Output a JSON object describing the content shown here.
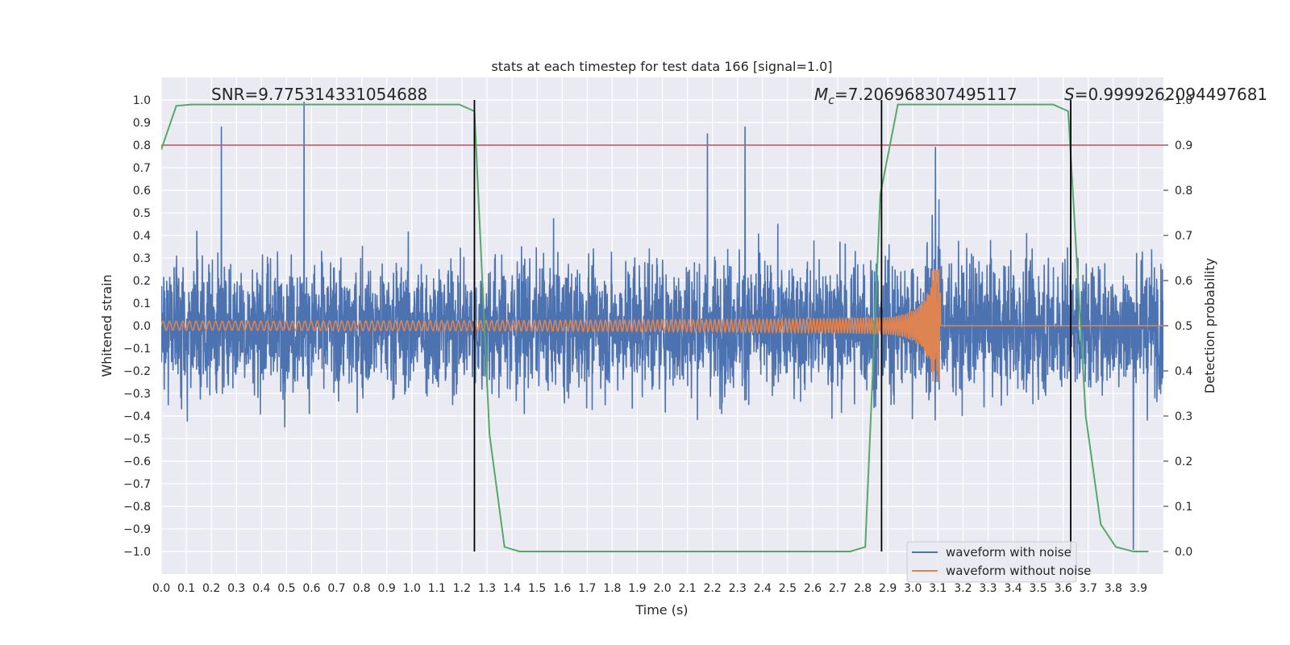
{
  "chart_data": {
    "type": "line",
    "title": "stats at each timestep for test data 166 [signal=1.0]",
    "xlabel": "Time (s)",
    "ylabel_left": "Whitened strain",
    "ylabel_right": "Detection probability",
    "xlim": [
      0.0,
      4.0
    ],
    "ylim_left": [
      -1.1,
      1.1
    ],
    "ylim_right": [
      -0.05,
      1.05
    ],
    "x_ticks": [
      "0.0",
      "0.1",
      "0.2",
      "0.3",
      "0.4",
      "0.5",
      "0.6",
      "0.7",
      "0.8",
      "0.9",
      "1.0",
      "1.1",
      "1.2",
      "1.3",
      "1.4",
      "1.5",
      "1.6",
      "1.7",
      "1.8",
      "1.9",
      "2.0",
      "2.1",
      "2.2",
      "2.3",
      "2.4",
      "2.5",
      "2.6",
      "2.7",
      "2.8",
      "2.9",
      "3.0",
      "3.1",
      "3.2",
      "3.3",
      "3.4",
      "3.5",
      "3.6",
      "3.7",
      "3.8",
      "3.9"
    ],
    "y_ticks_left": [
      "1.0",
      "0.9",
      "0.8",
      "0.7",
      "0.6",
      "0.5",
      "0.4",
      "0.3",
      "0.2",
      "0.1",
      "0.0",
      "−0.1",
      "−0.2",
      "−0.3",
      "−0.4",
      "−0.5",
      "−0.6",
      "−0.7",
      "−0.8",
      "−0.9",
      "−1.0"
    ],
    "y_ticks_right": [
      "1.0",
      "0.9",
      "0.8",
      "0.7",
      "0.6",
      "0.5",
      "0.4",
      "0.3",
      "0.2",
      "0.1",
      "0.0"
    ],
    "grid": true,
    "annotations": {
      "snr": "SNR=9.775314331054688",
      "mc_symbol": "M",
      "mc_sub": "c",
      "mc_value": "=7.206968307495117",
      "s_symbol": "S",
      "s_value": "=0.9999262094497681"
    },
    "threshold_line": {
      "axis": "right",
      "y": 0.9,
      "color": "#c44e52"
    },
    "vertical_lines_x": [
      1.25,
      2.875,
      3.63
    ],
    "series": [
      {
        "name": "waveform with noise",
        "axis": "left",
        "color": "#4c72b0",
        "description": "whitened noisy strain, dense random fluctuations roughly within ±0.6, spikes to about ±0.99",
        "peaks_x": [
          0.24,
          0.57,
          2.18,
          2.33,
          3.09,
          3.88
        ],
        "peaks_y": [
          0.88,
          0.99,
          0.85,
          0.88,
          0.79,
          -0.99
        ]
      },
      {
        "name": "waveform without noise",
        "axis": "left",
        "color": "#dd8452",
        "description": "chirp signal with amplitude growing from ~0.02 to ~0.25, ending at t≈3.11 s",
        "chirp_start_amplitude": 0.02,
        "chirp_peak_amplitude": 0.25,
        "merger_time": 3.11
      },
      {
        "name": "detection probability",
        "axis": "right",
        "color": "#55a868",
        "x": [
          0.0,
          0.06,
          0.12,
          1.19,
          1.25,
          1.31,
          1.37,
          1.43,
          2.75,
          2.81,
          2.87,
          2.94,
          3.56,
          3.62,
          3.69,
          3.75,
          3.81,
          3.88,
          3.94
        ],
        "y": [
          0.89,
          0.987,
          0.99,
          0.99,
          0.975,
          0.26,
          0.01,
          0.0,
          0.0,
          0.01,
          0.79,
          0.99,
          0.99,
          0.975,
          0.3,
          0.06,
          0.01,
          0.0,
          0.0
        ]
      }
    ],
    "legend": {
      "placement": "bottom-right",
      "entries": [
        {
          "label": "waveform with noise",
          "color": "#4c72b0"
        },
        {
          "label": "waveform without noise",
          "color": "#dd8452"
        }
      ]
    }
  }
}
